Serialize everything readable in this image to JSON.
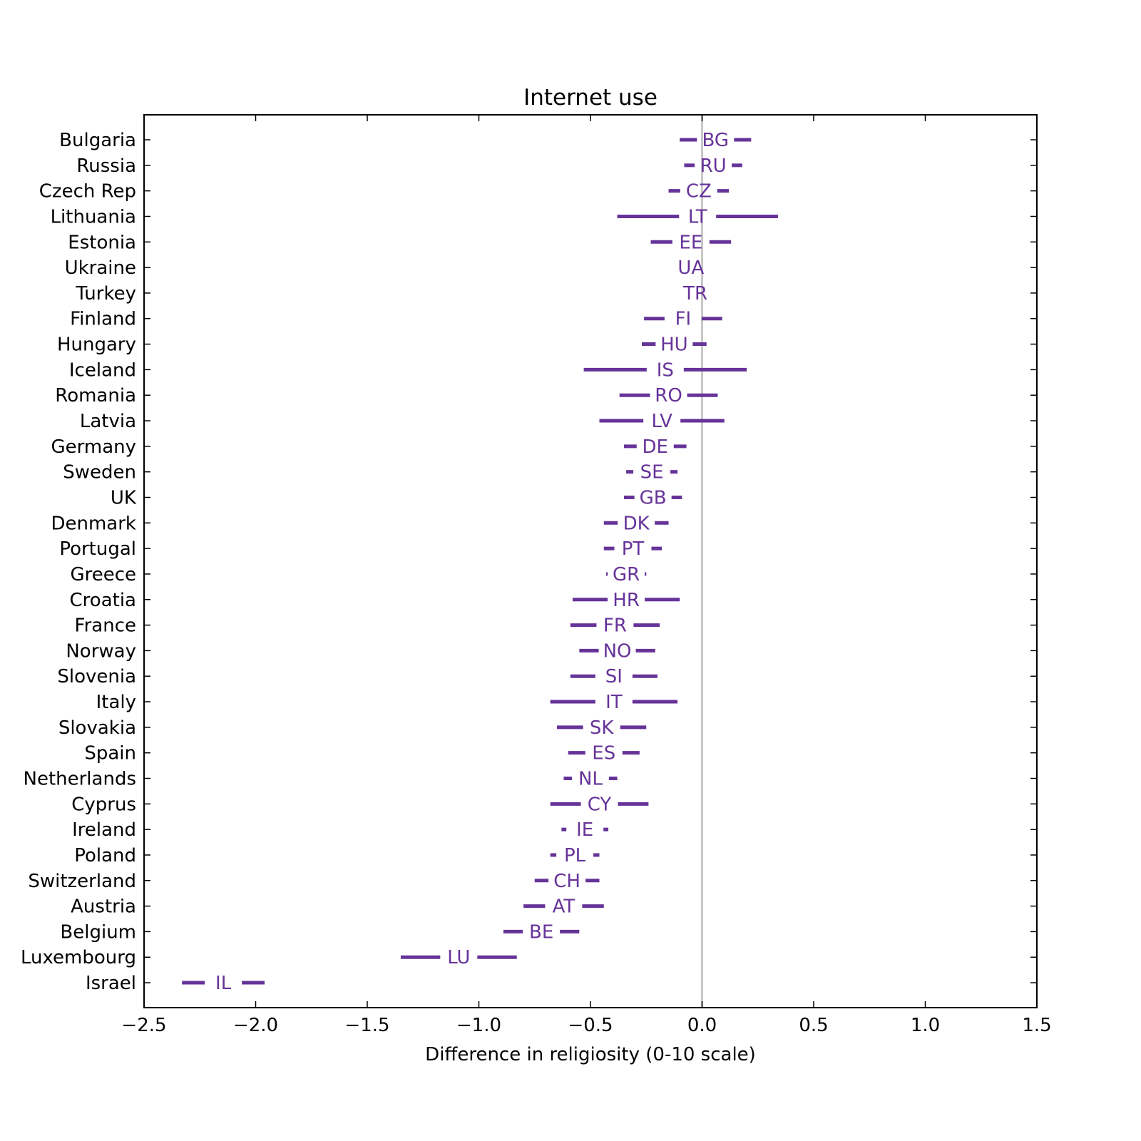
{
  "chart_data": {
    "type": "errorbar",
    "title": "Internet use",
    "xlabel": "Difference in religiosity (0-10 scale)",
    "ylabel": "",
    "xlim": [
      -2.5,
      1.5
    ],
    "xticks": [
      -2.5,
      -2.0,
      -1.5,
      -1.0,
      -0.5,
      0.0,
      0.5,
      1.0,
      1.5
    ],
    "xtick_labels": [
      "−2.5",
      "−2.0",
      "−1.5",
      "−1.0",
      "−0.5",
      "0.0",
      "0.5",
      "1.0",
      "1.5"
    ],
    "reference_line_x": 0.0,
    "grid": false,
    "colors": {
      "series": "#663399",
      "reference": "#bbbbbb",
      "axes": "#000000"
    },
    "countries": [
      {
        "name": "Bulgaria",
        "code": "BG",
        "low": -0.1,
        "high": 0.22
      },
      {
        "name": "Russia",
        "code": "RU",
        "low": -0.08,
        "high": 0.18
      },
      {
        "name": "Czech Rep",
        "code": "CZ",
        "low": -0.15,
        "high": 0.12
      },
      {
        "name": "Lithuania",
        "code": "LT",
        "low": -0.38,
        "high": 0.34
      },
      {
        "name": "Estonia",
        "code": "EE",
        "low": -0.23,
        "high": 0.13
      },
      {
        "name": "Ukraine",
        "code": "UA",
        "low": -0.05,
        "high": -0.05
      },
      {
        "name": "Turkey",
        "code": "TR",
        "low": -0.06,
        "high": 0.0
      },
      {
        "name": "Finland",
        "code": "FI",
        "low": -0.26,
        "high": 0.09
      },
      {
        "name": "Hungary",
        "code": "HU",
        "low": -0.27,
        "high": 0.02
      },
      {
        "name": "Iceland",
        "code": "IS",
        "low": -0.53,
        "high": 0.2
      },
      {
        "name": "Romania",
        "code": "RO",
        "low": -0.37,
        "high": 0.07
      },
      {
        "name": "Latvia",
        "code": "LV",
        "low": -0.46,
        "high": 0.1
      },
      {
        "name": "Germany",
        "code": "DE",
        "low": -0.35,
        "high": -0.07
      },
      {
        "name": "Sweden",
        "code": "SE",
        "low": -0.34,
        "high": -0.11
      },
      {
        "name": "UK",
        "code": "GB",
        "low": -0.35,
        "high": -0.09
      },
      {
        "name": "Denmark",
        "code": "DK",
        "low": -0.44,
        "high": -0.15
      },
      {
        "name": "Portugal",
        "code": "PT",
        "low": -0.44,
        "high": -0.18
      },
      {
        "name": "Greece",
        "code": "GR",
        "low": -0.43,
        "high": -0.25
      },
      {
        "name": "Croatia",
        "code": "HR",
        "low": -0.58,
        "high": -0.1
      },
      {
        "name": "France",
        "code": "FR",
        "low": -0.59,
        "high": -0.19
      },
      {
        "name": "Norway",
        "code": "NO",
        "low": -0.55,
        "high": -0.21
      },
      {
        "name": "Slovenia",
        "code": "SI",
        "low": -0.59,
        "high": -0.2
      },
      {
        "name": "Italy",
        "code": "IT",
        "low": -0.68,
        "high": -0.11
      },
      {
        "name": "Slovakia",
        "code": "SK",
        "low": -0.65,
        "high": -0.25
      },
      {
        "name": "Spain",
        "code": "ES",
        "low": -0.6,
        "high": -0.28
      },
      {
        "name": "Netherlands",
        "code": "NL",
        "low": -0.62,
        "high": -0.38
      },
      {
        "name": "Cyprus",
        "code": "CY",
        "low": -0.68,
        "high": -0.24
      },
      {
        "name": "Ireland",
        "code": "IE",
        "low": -0.63,
        "high": -0.42
      },
      {
        "name": "Poland",
        "code": "PL",
        "low": -0.68,
        "high": -0.46
      },
      {
        "name": "Switzerland",
        "code": "CH",
        "low": -0.75,
        "high": -0.46
      },
      {
        "name": "Austria",
        "code": "AT",
        "low": -0.8,
        "high": -0.44
      },
      {
        "name": "Belgium",
        "code": "BE",
        "low": -0.89,
        "high": -0.55
      },
      {
        "name": "Luxembourg",
        "code": "LU",
        "low": -1.35,
        "high": -0.83
      },
      {
        "name": "Israel",
        "code": "IL",
        "low": -2.33,
        "high": -1.96
      }
    ]
  }
}
